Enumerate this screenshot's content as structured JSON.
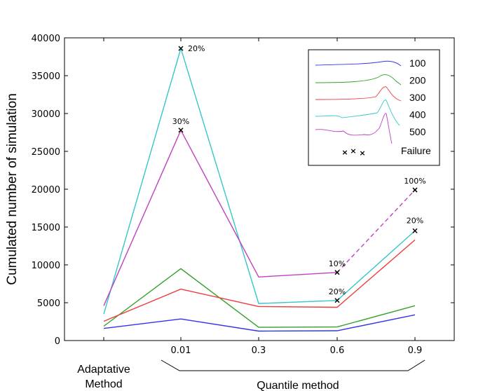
{
  "chart_data": {
    "type": "line",
    "ylabel": "Cumulated number of simulation",
    "xlabel": "Quantile method",
    "first_category_label": [
      "Adaptative",
      "Method"
    ],
    "categories": [
      "",
      "0.01",
      "0.3",
      "0.6",
      "0.9"
    ],
    "ylim": [
      0,
      40000
    ],
    "yticks": [
      0,
      5000,
      10000,
      15000,
      20000,
      25000,
      30000,
      35000,
      40000
    ],
    "series": [
      {
        "name": "100",
        "color": "#3333ee",
        "values": [
          1600,
          2850,
          1250,
          1300,
          3400
        ]
      },
      {
        "name": "200",
        "color": "#33a02c",
        "values": [
          1900,
          9500,
          1750,
          1800,
          4600
        ]
      },
      {
        "name": "300",
        "color": "#ee3b3b",
        "values": [
          2550,
          6800,
          4500,
          4400,
          13300
        ]
      },
      {
        "name": "400",
        "color": "#35c6c6",
        "values": [
          3500,
          38600,
          4900,
          5300,
          14500
        ]
      },
      {
        "name": "500",
        "color": "#c040c0",
        "values": [
          4600,
          27800,
          8400,
          9000,
          null
        ]
      }
    ],
    "dashed_segments": [
      {
        "series": "500",
        "from": [
          3,
          9000
        ],
        "to": [
          4,
          19900
        ]
      }
    ],
    "failure_markers": [
      {
        "series": "400",
        "x": 1,
        "y": 38600,
        "label": "20%"
      },
      {
        "series": "500",
        "x": 1,
        "y": 27800,
        "label": "30%"
      },
      {
        "series": "500",
        "x": 3,
        "y": 9000,
        "label": "10%"
      },
      {
        "series": "400",
        "x": 3,
        "y": 5300,
        "label": "20%"
      },
      {
        "series": "500",
        "x": 4,
        "y": 19900,
        "label": "100%"
      },
      {
        "series": "400",
        "x": 4,
        "y": 14500,
        "label": "20%"
      }
    ],
    "legend": {
      "position": "top-right",
      "failure_label": "Failure",
      "entries": [
        "100",
        "200",
        "300",
        "400",
        "500"
      ]
    }
  }
}
